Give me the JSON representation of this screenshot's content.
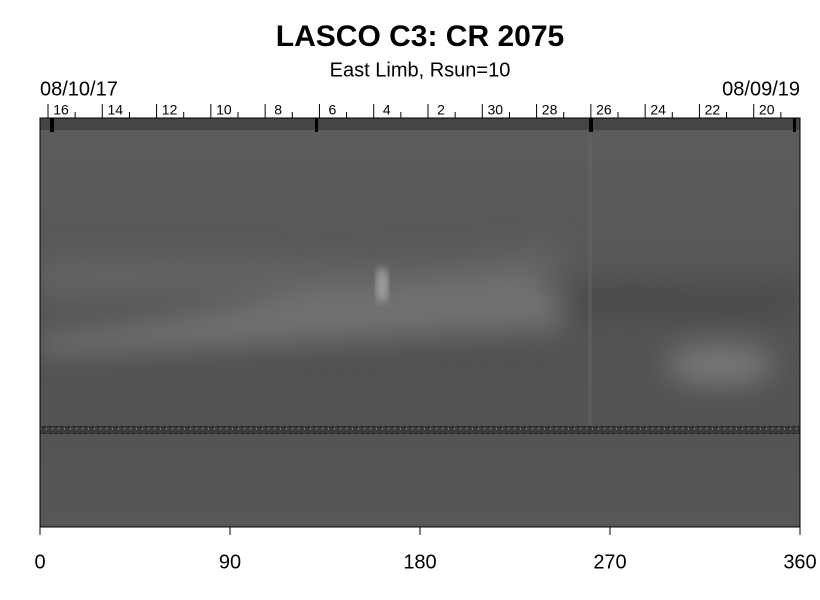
{
  "chart_data": {
    "type": "image",
    "title": "LASCO C3: CR 2075",
    "subtitle": "East Limb, Rsun=10",
    "top_left_label": "08/10/17",
    "top_right_label": "08/09/19",
    "top_ticks": [
      "16",
      "14",
      "12",
      "10",
      "8",
      "6",
      "4",
      "2",
      "30",
      "28",
      "26",
      "24",
      "22",
      "20"
    ],
    "xlim": [
      0,
      360
    ],
    "xticks": [
      0,
      90,
      180,
      270,
      360
    ]
  }
}
